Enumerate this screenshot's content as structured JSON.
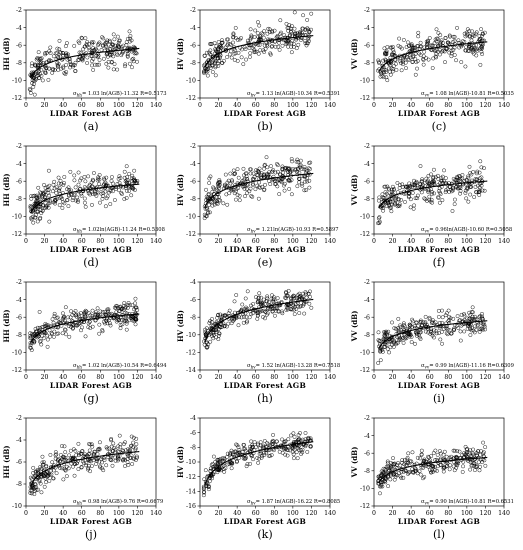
{
  "chart_data": [
    {
      "id": "a",
      "type": "scatter",
      "tag": "(a)",
      "ylabel": "HH (dB)",
      "xlabel": "LIDAR Forest AGB",
      "xlim": [
        0,
        140
      ],
      "ylim": [
        -12,
        -2
      ],
      "xticks": [
        0,
        20,
        40,
        60,
        80,
        100,
        120,
        140
      ],
      "yticks": [
        -12,
        -10,
        -8,
        -6,
        -4,
        -2
      ],
      "fit": {
        "a": 1.03,
        "b": -11.32
      },
      "equation": "σhh= 1.03 ln(AGB)-11.32 R=0.5173",
      "sigma": "σ",
      "sub": "hh",
      "eq_rest": "= 1.03 ln(AGB)-11.32  R=0.5173",
      "scatter_sd": 1.0
    },
    {
      "id": "b",
      "type": "scatter",
      "tag": "(b)",
      "ylabel": "HV (dB)",
      "xlabel": "LIDAR Forest AGB",
      "xlim": [
        0,
        140
      ],
      "ylim": [
        -12,
        -2
      ],
      "xticks": [
        0,
        20,
        40,
        60,
        80,
        100,
        120,
        140
      ],
      "yticks": [
        -12,
        -10,
        -8,
        -6,
        -4,
        -2
      ],
      "fit": {
        "a": 1.13,
        "b": -10.34
      },
      "equation": "σhv= 1.13 ln(AGB)-10.34 R=0.5391",
      "sigma": "σ",
      "sub": "hv",
      "eq_rest": "= 1.13 ln(AGB)-10.34  R=0.5391",
      "scatter_sd": 1.0
    },
    {
      "id": "c",
      "type": "scatter",
      "tag": "(c)",
      "ylabel": "VV (dB)",
      "xlabel": "LIDAR Forest AGB",
      "xlim": [
        0,
        140
      ],
      "ylim": [
        -12,
        -2
      ],
      "xticks": [
        0,
        20,
        40,
        60,
        80,
        100,
        120,
        140
      ],
      "yticks": [
        -12,
        -10,
        -8,
        -6,
        -4,
        -2
      ],
      "fit": {
        "a": 1.08,
        "b": -10.81
      },
      "equation": "σvv= 1.08 ln(AGB)-10.81 R=0.5035",
      "sigma": "σ",
      "sub": "vv",
      "eq_rest": "= 1.08 ln(AGB)-10.81  R=0.5035",
      "scatter_sd": 1.0
    },
    {
      "id": "d",
      "type": "scatter",
      "tag": "(d)",
      "ylabel": "HH (dB)",
      "xlabel": "LIDAR Forest AGB",
      "xlim": [
        0,
        140
      ],
      "ylim": [
        -12,
        -2
      ],
      "xticks": [
        0,
        20,
        40,
        60,
        80,
        100,
        120,
        140
      ],
      "yticks": [
        -12,
        -10,
        -8,
        -6,
        -4,
        -2
      ],
      "fit": {
        "a": 1.02,
        "b": -11.24
      },
      "equation": "σhh= 1.02ln(AGB)-11.24 R=0.5308",
      "sigma": "σ",
      "sub": "hh",
      "eq_rest": "= 1.02ln(AGB)-11.24  R=0.5308",
      "scatter_sd": 1.0
    },
    {
      "id": "e",
      "type": "scatter",
      "tag": "(e)",
      "ylabel": "HV (dB)",
      "xlabel": "LIDAR Forest AGB",
      "xlim": [
        0,
        140
      ],
      "ylim": [
        -12,
        -2
      ],
      "xticks": [
        0,
        20,
        40,
        60,
        80,
        100,
        120,
        140
      ],
      "yticks": [
        -12,
        -10,
        -8,
        -6,
        -4,
        -2
      ],
      "fit": {
        "a": 1.21,
        "b": -10.93
      },
      "equation": "σhv= 1.21ln(AGB)-10.93 R=0.5897",
      "sigma": "σ",
      "sub": "hv",
      "eq_rest": "= 1.21ln(AGB)-10.93  R=0.5897",
      "scatter_sd": 0.95
    },
    {
      "id": "f",
      "type": "scatter",
      "tag": "(f)",
      "ylabel": "VV (dB)",
      "xlabel": "LIDAR Forest AGB",
      "xlim": [
        0,
        140
      ],
      "ylim": [
        -12,
        -2
      ],
      "xticks": [
        0,
        20,
        40,
        60,
        80,
        100,
        120,
        140
      ],
      "yticks": [
        -12,
        -10,
        -8,
        -6,
        -4,
        -2
      ],
      "fit": {
        "a": 0.96,
        "b": -10.6
      },
      "equation": "σvv= 0.96ln(AGB)-10.60 R=0.5058",
      "sigma": "σ",
      "sub": "vv",
      "eq_rest": "= 0.96ln(AGB)-10.60  R=0.5058",
      "scatter_sd": 1.0
    },
    {
      "id": "g",
      "type": "scatter",
      "tag": "(g)",
      "ylabel": "HH (dB)",
      "xlabel": "LIDAR Forest AGB",
      "xlim": [
        0,
        140
      ],
      "ylim": [
        -12,
        -2
      ],
      "xticks": [
        0,
        20,
        40,
        60,
        80,
        100,
        120,
        140
      ],
      "yticks": [
        -12,
        -10,
        -8,
        -6,
        -4,
        -2
      ],
      "fit": {
        "a": 1.02,
        "b": -10.54
      },
      "equation": "σhh= 1.02 ln(AGB)-10.54 R=0.6494",
      "sigma": "σ",
      "sub": "hh",
      "eq_rest": "= 1.02 ln(AGB)-10.54  R=0.6494",
      "scatter_sd": 0.75
    },
    {
      "id": "h",
      "type": "scatter",
      "tag": "(h)",
      "ylabel": "HV (dB)",
      "xlabel": "LIDAR Forest AGB",
      "xlim": [
        0,
        140
      ],
      "ylim": [
        -14,
        -4
      ],
      "xticks": [
        0,
        20,
        40,
        60,
        80,
        100,
        120,
        140
      ],
      "yticks": [
        -14,
        -12,
        -10,
        -8,
        -6,
        -4
      ],
      "fit": {
        "a": 1.52,
        "b": -13.28
      },
      "equation": "σhv= 1.52 ln(AGB)-13.28 R=0.7518",
      "sigma": "σ",
      "sub": "hv",
      "eq_rest": "= 1.52 ln(AGB)-13.28  R=0.7518",
      "scatter_sd": 0.75
    },
    {
      "id": "i",
      "type": "scatter",
      "tag": "(i)",
      "ylabel": "VV (dB)",
      "xlabel": "LIDAR Forest AGB",
      "xlim": [
        0,
        140
      ],
      "ylim": [
        -12,
        -2
      ],
      "xticks": [
        0,
        20,
        40,
        60,
        80,
        100,
        120,
        140
      ],
      "yticks": [
        -12,
        -10,
        -8,
        -6,
        -4,
        -2
      ],
      "fit": {
        "a": 0.99,
        "b": -11.16
      },
      "equation": "σvv= 0.99 ln(AGB)-11.16 R=0.6309",
      "sigma": "σ",
      "sub": "vv",
      "eq_rest": "= 0.99 ln(AGB)-11.16  R=0.6309",
      "scatter_sd": 0.75
    },
    {
      "id": "j",
      "type": "scatter",
      "tag": "(j)",
      "ylabel": "HH (dB)",
      "xlabel": "LIDAR Forest AGB",
      "xlim": [
        0,
        140
      ],
      "ylim": [
        -10,
        -2
      ],
      "xticks": [
        0,
        20,
        40,
        60,
        80,
        100,
        120,
        140
      ],
      "yticks": [
        -10,
        -8,
        -6,
        -4,
        -2
      ],
      "fit": {
        "a": 0.98,
        "b": -9.76
      },
      "equation": "σhh= 0.98 ln(AGB)-9.76 R=0.6679",
      "sigma": "σ",
      "sub": "hh",
      "eq_rest": "= 0.98 ln(AGB)-9.76  R=0.6679",
      "scatter_sd": 0.7
    },
    {
      "id": "k",
      "type": "scatter",
      "tag": "(k)",
      "ylabel": "HV (dB)",
      "xlabel": "LIDAR Forest AGB",
      "xlim": [
        0,
        140
      ],
      "ylim": [
        -16,
        -4
      ],
      "xticks": [
        0,
        20,
        40,
        60,
        80,
        100,
        120,
        140
      ],
      "yticks": [
        -16,
        -14,
        -12,
        -10,
        -8,
        -6,
        -4
      ],
      "fit": {
        "a": 1.87,
        "b": -16.22
      },
      "equation": "σhv= 1.87 ln(AGB)-16.22 R=0.8085",
      "sigma": "σ",
      "sub": "hv",
      "eq_rest": "= 1.87 ln(AGB)-16.22  R=0.8085",
      "scatter_sd": 0.75
    },
    {
      "id": "l",
      "type": "scatter",
      "tag": "(l)",
      "ylabel": "VV (dB)",
      "xlabel": "LIDAR Forest AGB",
      "xlim": [
        0,
        140
      ],
      "ylim": [
        -12,
        -2
      ],
      "xticks": [
        0,
        20,
        40,
        60,
        80,
        100,
        120,
        140
      ],
      "yticks": [
        -12,
        -10,
        -8,
        -6,
        -4,
        -2
      ],
      "fit": {
        "a": 0.9,
        "b": -10.81
      },
      "equation": "σvv= 0.90 ln(AGB)-10.81 R=0.6531",
      "sigma": "σ",
      "sub": "vv",
      "eq_rest": "= 0.90 ln(AGB)-10.81  R=0.6531",
      "scatter_sd": 0.7
    }
  ],
  "colors": {
    "marker_stroke": "#000000",
    "fit_line": "#000000",
    "axis": "#000000",
    "background": "#ffffff"
  }
}
